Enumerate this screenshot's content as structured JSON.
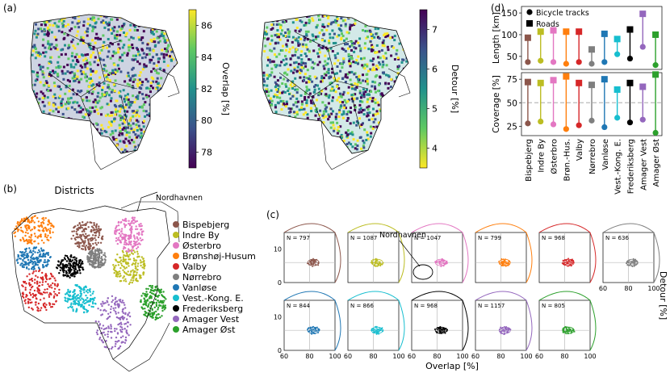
{
  "panel_labels": {
    "a": "(a)",
    "b": "(b)",
    "c": "(c)",
    "d": "(d)"
  },
  "colors": {
    "Bispebjerg": "#8c564b",
    "Indre By": "#bcbd22",
    "Østerbro": "#e377c2",
    "Brønshøj-Husum": "#ff7f0e",
    "Valby": "#d62728",
    "Nørrebro": "#7f7f7f",
    "Vanløse": "#1f77b4",
    "Vest.-Kong. E.": "#17becf",
    "Frederiksberg": "#000000",
    "Amager Vest": "#9467bd",
    "Amager Øst": "#2ca02c"
  },
  "map_a1": {
    "colorbar_label": "Overlap [%]",
    "ticks": [
      "86",
      "84",
      "82",
      "80",
      "78"
    ],
    "cmap": [
      "#fde725",
      "#5ec962",
      "#21918c",
      "#3b528b",
      "#440154"
    ]
  },
  "map_a2": {
    "colorbar_label": "Detour [%]",
    "ticks": [
      "7",
      "6",
      "5",
      "4"
    ],
    "cmap": [
      "#440154",
      "#3b528b",
      "#21918c",
      "#5ec962",
      "#fde725"
    ]
  },
  "districts_map": {
    "title": "Districts",
    "annotation": "Nordhavnen"
  },
  "legend": [
    "Bispebjerg",
    "Indre By",
    "Østerbro",
    "Brønshøj-Husum",
    "Valby",
    "Nørrebro",
    "Vanløse",
    "Vest.-Kong. E.",
    "Frederiksberg",
    "Amager Vest",
    "Amager Øst"
  ],
  "chart_data": [
    {
      "type": "dumbbell",
      "panel": "d-top",
      "ylabel": "Length [km]",
      "yticks": [
        50,
        100,
        150
      ],
      "ylim": [
        20,
        165
      ],
      "legend": [
        "Bicycle tracks",
        "Roads"
      ],
      "categories": [
        "Bispebjerg",
        "Indre By",
        "Østerbro",
        "Brøn.-Hus.",
        "Valby",
        "Nørrebro",
        "Vanløse",
        "Vest.-Kong. E.",
        "Frederiksberg",
        "Amager Vest",
        "Amager Øst"
      ],
      "series": [
        {
          "name": "Bicycle tracks",
          "values": [
            37,
            40,
            37,
            33,
            37,
            33,
            37,
            55,
            45,
            72,
            30
          ]
        },
        {
          "name": "Roads",
          "values": [
            93,
            107,
            110,
            107,
            107,
            66,
            102,
            90,
            112,
            148,
            100
          ]
        }
      ]
    },
    {
      "type": "dumbbell",
      "panel": "d-bottom",
      "ylabel": "Coverage [%]",
      "yticks": [
        25,
        50,
        75
      ],
      "ylim": [
        15,
        82
      ],
      "reference_line": 50,
      "categories": [
        "Bispebjerg",
        "Indre By",
        "Østerbro",
        "Brøn.-Hus.",
        "Valby",
        "Nørrebro",
        "Vanløse",
        "Vest.-Kong. E.",
        "Frederiksberg",
        "Amager Vest",
        "Amager Øst"
      ],
      "series": [
        {
          "name": "Bicycle tracks",
          "values": [
            28,
            30,
            27,
            22,
            26,
            31,
            24,
            34,
            29,
            32,
            18
          ]
        },
        {
          "name": "Roads",
          "values": [
            72,
            71,
            74,
            78,
            71,
            69,
            75,
            64,
            71,
            67,
            80
          ]
        }
      ]
    },
    {
      "type": "scatter_density_grid",
      "panel": "c",
      "xlabel": "Overlap [%]",
      "ylabel": "Detour [%]",
      "xticks": [
        60,
        80,
        100
      ],
      "yticks": [
        0,
        10
      ],
      "xlim": [
        60,
        100
      ],
      "ylim": [
        0,
        15
      ],
      "reference_y": 6,
      "reference_x": 80,
      "annotation": "Nordhavnen",
      "subplots": [
        {
          "district": "Bispebjerg",
          "n": "N = 797"
        },
        {
          "district": "Indre By",
          "n": "N = 1087"
        },
        {
          "district": "Østerbro",
          "n": "N = 1047"
        },
        {
          "district": "Brønshøj-Husum",
          "n": "N = 799"
        },
        {
          "district": "Valby",
          "n": "N = 968"
        },
        {
          "district": "Nørrebro",
          "n": "N = 636"
        },
        {
          "district": "Vanløse",
          "n": "N = 844"
        },
        {
          "district": "Vest.-Kong. E.",
          "n": "N = 866"
        },
        {
          "district": "Frederiksberg",
          "n": "N = 968"
        },
        {
          "district": "Amager Vest",
          "n": "N = 1157"
        },
        {
          "district": "Amager Øst",
          "n": "N = 805"
        }
      ]
    }
  ]
}
